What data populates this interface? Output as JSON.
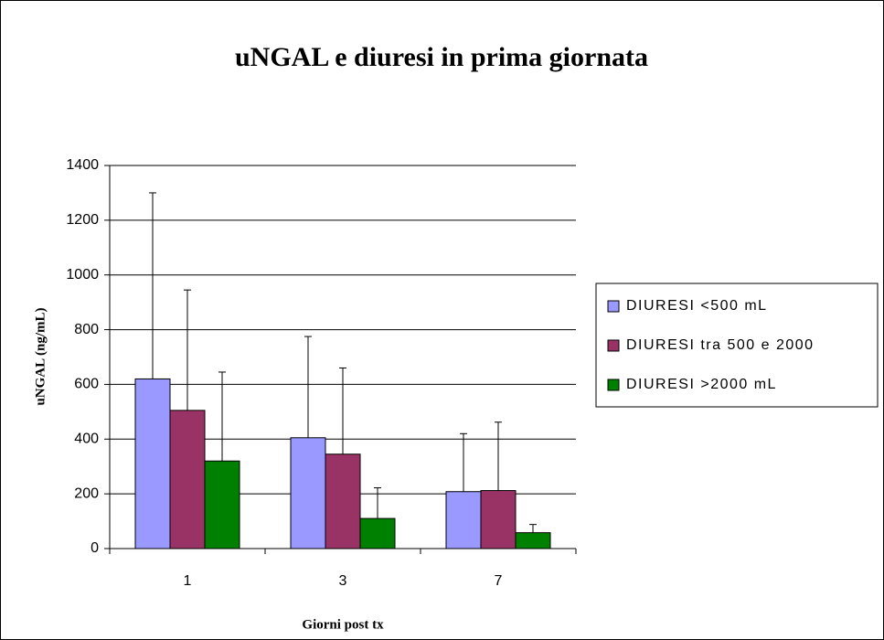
{
  "chart_data": {
    "type": "bar",
    "title": "uNGAL e diuresi in prima giornata",
    "x_label": "Giorni post tx",
    "y_label": "uNGAL (ng/mL)",
    "categories": [
      "1",
      "3",
      "7"
    ],
    "series": [
      {
        "name": "DIURESI <500 mL",
        "color": "#9999ff",
        "values": [
          620,
          405,
          208
        ],
        "errors": [
          680,
          370,
          212
        ]
      },
      {
        "name": "DIURESI tra 500 e 2000",
        "color": "#993366",
        "values": [
          505,
          345,
          212
        ],
        "errors": [
          440,
          315,
          250
        ]
      },
      {
        "name": "DIURESI >2000 mL",
        "color": "#008000",
        "values": [
          320,
          110,
          58
        ],
        "errors": [
          325,
          112,
          30
        ]
      }
    ],
    "ylim": [
      0,
      1400
    ],
    "yticks": [
      0,
      200,
      400,
      600,
      800,
      1000,
      1200,
      1400
    ],
    "grid": true,
    "legend": "right"
  }
}
